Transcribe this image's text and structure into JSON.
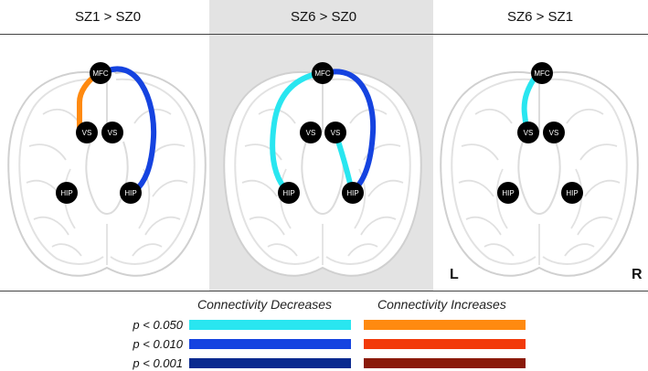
{
  "panels": [
    {
      "title": "SZ1 > SZ0",
      "highlighted": false
    },
    {
      "title": "SZ6 > SZ0",
      "highlighted": true
    },
    {
      "title": "SZ6 > SZ1",
      "highlighted": false
    }
  ],
  "nodes": {
    "mfc": "MFC",
    "vs": "VS",
    "hip": "HIP"
  },
  "orientation": {
    "left": "L",
    "right": "R"
  },
  "legend": {
    "decreases_title": "Connectivity Decreases",
    "increases_title": "Connectivity Increases",
    "thresholds": [
      {
        "label": "p < 0.050",
        "decrease_color": "#29e6f0",
        "increase_color": "#ff8a10"
      },
      {
        "label": "p < 0.010",
        "decrease_color": "#1543e0",
        "increase_color": "#f23a0a"
      },
      {
        "label": "p < 0.001",
        "decrease_color": "#0a2a8f",
        "increase_color": "#8a1a0a"
      }
    ]
  },
  "connections": [
    {
      "panel": "SZ1 > SZ0",
      "from": "MFC",
      "to": "VS (left)",
      "type": "increase",
      "threshold": "p < 0.050"
    },
    {
      "panel": "SZ1 > SZ0",
      "from": "MFC",
      "to": "HIP (right)",
      "type": "decrease",
      "threshold": "p < 0.010"
    },
    {
      "panel": "SZ6 > SZ0",
      "from": "MFC",
      "to": "HIP (left)",
      "type": "decrease",
      "threshold": "p < 0.050"
    },
    {
      "panel": "SZ6 > SZ0",
      "from": "MFC",
      "to": "HIP (right)",
      "type": "decrease",
      "threshold": "p < 0.010"
    },
    {
      "panel": "SZ6 > SZ0",
      "from": "VS (right)",
      "to": "HIP (right)",
      "type": "decrease",
      "threshold": "p < 0.050"
    },
    {
      "panel": "SZ6 > SZ1",
      "from": "MFC",
      "to": "VS (left)",
      "type": "decrease",
      "threshold": "p < 0.050"
    }
  ]
}
